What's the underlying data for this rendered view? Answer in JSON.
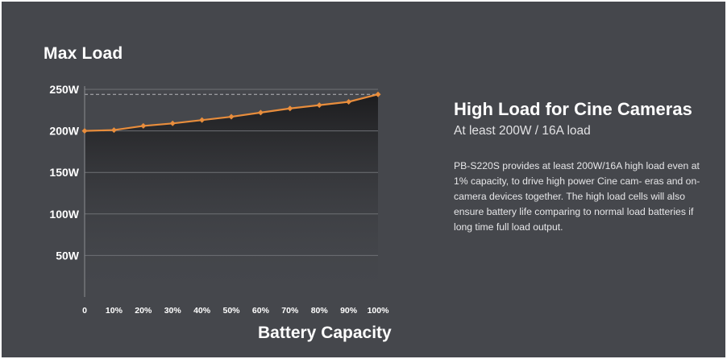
{
  "chart_data": {
    "type": "line",
    "title": "Max Load",
    "xlabel": "Battery Capacity",
    "ylabel": "",
    "x": [
      0,
      10,
      20,
      30,
      40,
      50,
      60,
      70,
      80,
      90,
      100
    ],
    "x_tick_labels": [
      "0",
      "10%",
      "20%",
      "30%",
      "40%",
      "50%",
      "60%",
      "70%",
      "80%",
      "90%",
      "100%"
    ],
    "y_tick_values": [
      50,
      100,
      150,
      200,
      250
    ],
    "y_tick_labels": [
      "50W",
      "100W",
      "150W",
      "200W",
      "250W"
    ],
    "ylim": [
      0,
      250
    ],
    "xlim": [
      0,
      100
    ],
    "grid": true,
    "reference_line": {
      "y": 244,
      "style": "dashed"
    },
    "series": [
      {
        "values": [
          200,
          201,
          206,
          209,
          213,
          217,
          222,
          227,
          231,
          235,
          244
        ]
      }
    ],
    "colors": {
      "line": "#e88d3c",
      "background": "#45474c",
      "grid": "#6e7075",
      "axis": "#8a8c91"
    }
  },
  "info": {
    "title": "High Load for Cine Cameras",
    "subtitle": "At least 200W / 16A load",
    "body": "PB-S220S provides at least 200W/16A high load even at 1% capacity, to drive high power Cine cam- eras and on-camera devices together. The high load cells will also ensure battery life comparing to normal load batteries if long time full load output."
  }
}
